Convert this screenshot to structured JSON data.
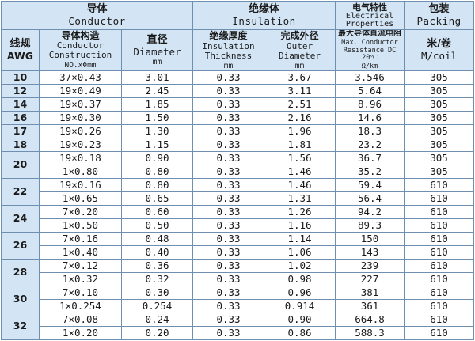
{
  "header": {
    "conductor": {
      "cn": "导体",
      "en": "Conductor"
    },
    "insulation": {
      "cn": "绝缘体",
      "en": "Insulation"
    },
    "electrical": {
      "cn": "电气特性",
      "en": "Electrical Properties"
    },
    "packing": {
      "cn": "包装",
      "en": "Packing"
    }
  },
  "subheader": {
    "awg": {
      "cn": "线规",
      "en": "AWG"
    },
    "construction": {
      "cn": "导体构造",
      "en": "Conductor Construction",
      "unit": "NO.xΦmm"
    },
    "diameter": {
      "cn": "直径",
      "en": "Diameter",
      "unit": "mm"
    },
    "thickness": {
      "cn": "绝缘厚度",
      "en": "Insulation Thickness",
      "unit": "mm"
    },
    "outer": {
      "cn": "完成外径",
      "en": "Outer Diameter",
      "unit": "mm"
    },
    "resistance": {
      "cn": "最大导体直流电阻",
      "en": "Max. Conductor Resistance DC 20℃",
      "unit": "Ω/km"
    },
    "coil": {
      "cn": "米/卷",
      "en": "M/coil"
    }
  },
  "rows": [
    {
      "awg": "10",
      "construction": "37×0.43",
      "diameter": "3.01",
      "thickness": "0.33",
      "outer": "3.67",
      "resistance": "3.546",
      "coil": "305"
    },
    {
      "awg": "12",
      "construction": "19×0.49",
      "diameter": "2.45",
      "thickness": "0.33",
      "outer": "3.11",
      "resistance": "5.64",
      "coil": "305"
    },
    {
      "awg": "14",
      "construction": "19×0.37",
      "diameter": "1.85",
      "thickness": "0.33",
      "outer": "2.51",
      "resistance": "8.96",
      "coil": "305"
    },
    {
      "awg": "16",
      "construction": "19×0.30",
      "diameter": "1.50",
      "thickness": "0.33",
      "outer": "2.16",
      "resistance": "14.6",
      "coil": "305"
    },
    {
      "awg": "17",
      "construction": "19×0.26",
      "diameter": "1.30",
      "thickness": "0.33",
      "outer": "1.96",
      "resistance": "18.3",
      "coil": "305"
    },
    {
      "awg": "18",
      "construction": "19×0.23",
      "diameter": "1.15",
      "thickness": "0.33",
      "outer": "1.81",
      "resistance": "23.2",
      "coil": "305"
    },
    {
      "awg": "20",
      "construction": "19×0.18",
      "diameter": "0.90",
      "thickness": "0.33",
      "outer": "1.56",
      "resistance": "36.7",
      "coil": "305"
    },
    {
      "construction": "1×0.80",
      "diameter": "0.80",
      "thickness": "0.33",
      "outer": "1.46",
      "resistance": "35.2",
      "coil": "305"
    },
    {
      "awg": "22",
      "construction": "19×0.16",
      "diameter": "0.80",
      "thickness": "0.33",
      "outer": "1.46",
      "resistance": "59.4",
      "coil": "610"
    },
    {
      "construction": "1×0.65",
      "diameter": "0.65",
      "thickness": "0.33",
      "outer": "1.31",
      "resistance": "56.4",
      "coil": "610"
    },
    {
      "awg": "24",
      "construction": "7×0.20",
      "diameter": "0.60",
      "thickness": "0.33",
      "outer": "1.26",
      "resistance": "94.2",
      "coil": "610"
    },
    {
      "construction": "1×0.50",
      "diameter": "0.50",
      "thickness": "0.33",
      "outer": "1.16",
      "resistance": "89.3",
      "coil": "610"
    },
    {
      "awg": "26",
      "construction": "7×0.16",
      "diameter": "0.48",
      "thickness": "0.33",
      "outer": "1.14",
      "resistance": "150",
      "coil": "610"
    },
    {
      "construction": "1×0.40",
      "diameter": "0.40",
      "thickness": "0.33",
      "outer": "1.06",
      "resistance": "143",
      "coil": "610"
    },
    {
      "awg": "28",
      "construction": "7×0.12",
      "diameter": "0.36",
      "thickness": "0.33",
      "outer": "1.02",
      "resistance": "239",
      "coil": "610"
    },
    {
      "construction": "1×0.32",
      "diameter": "0.32",
      "thickness": "0.33",
      "outer": "0.98",
      "resistance": "227",
      "coil": "610"
    },
    {
      "awg": "30",
      "construction": "7×0.10",
      "diameter": "0.30",
      "thickness": "0.33",
      "outer": "0.96",
      "resistance": "381",
      "coil": "610"
    },
    {
      "construction": "1×0.254",
      "diameter": "0.254",
      "thickness": "0.33",
      "outer": "0.914",
      "resistance": "361",
      "coil": "610"
    },
    {
      "awg": "32",
      "construction": "7×0.08",
      "diameter": "0.24",
      "thickness": "0.33",
      "outer": "0.90",
      "resistance": "664.8",
      "coil": "610"
    },
    {
      "construction": "1×0.20",
      "diameter": "0.20",
      "thickness": "0.33",
      "outer": "0.86",
      "resistance": "588.3",
      "coil": "610"
    }
  ]
}
